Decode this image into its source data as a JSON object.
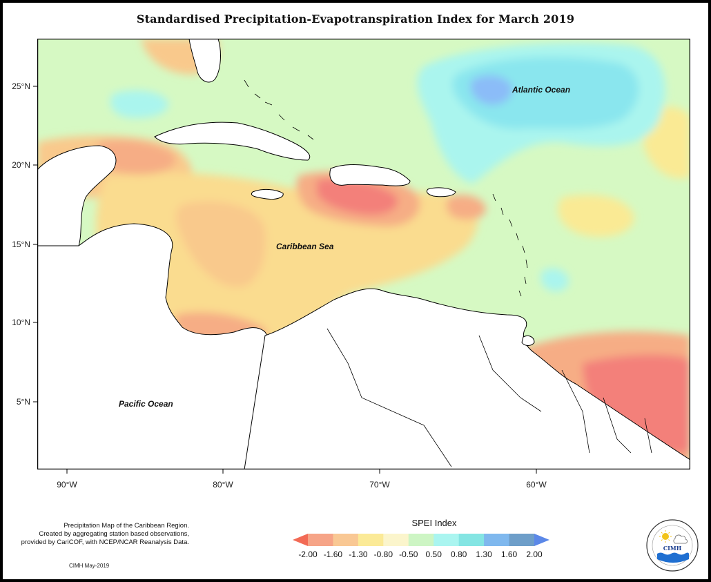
{
  "title": "Standardised Precipitation-Evapotranspiration Index for March 2019",
  "map": {
    "lat_ticks": [
      "25°N",
      "20°N",
      "15°N",
      "10°N",
      "5°N"
    ],
    "lon_ticks": [
      "90°W",
      "80°W",
      "70°W",
      "60°W"
    ],
    "labels": {
      "atlantic": "Atlantic Ocean",
      "caribbean": "Caribbean Sea",
      "pacific": "Pacific Ocean"
    },
    "colors": {
      "background": "#d6f9c3",
      "dry_strong": "#f3807a",
      "dry": "#f6ad85",
      "dry_moderate": "#f9c98c",
      "dry_mild": "#faea94",
      "near_normal": "#f8f4c6",
      "wet_mild": "#aaf5ee",
      "wet": "#8ae6ee",
      "wet_strong": "#8bbcf8",
      "land": "#ffffff"
    }
  },
  "description": {
    "line1": "Precipitation Map of the Caribbean Region.",
    "line2": "Created by aggregating station based observations,",
    "line3": "provided by CariCOF, with NCEP/NCAR Reanalysis Data."
  },
  "credit": "CIMH May-2019",
  "legend": {
    "title": "SPEI Index",
    "labels": [
      "-2.00",
      "-1.60",
      "-1.30",
      "-0.80",
      "-0.50",
      "0.50",
      "0.80",
      "1.30",
      "1.60",
      "2.00"
    ],
    "colors": [
      "#f26a55",
      "#f6a487",
      "#f9c894",
      "#fbea97",
      "#fbf5cc",
      "#cdf5c4",
      "#aaf5f0",
      "#84e5e3",
      "#7fb8ee",
      "#6e9ec9",
      "#5b88e8"
    ]
  },
  "logo": {
    "text": "CIMH"
  }
}
